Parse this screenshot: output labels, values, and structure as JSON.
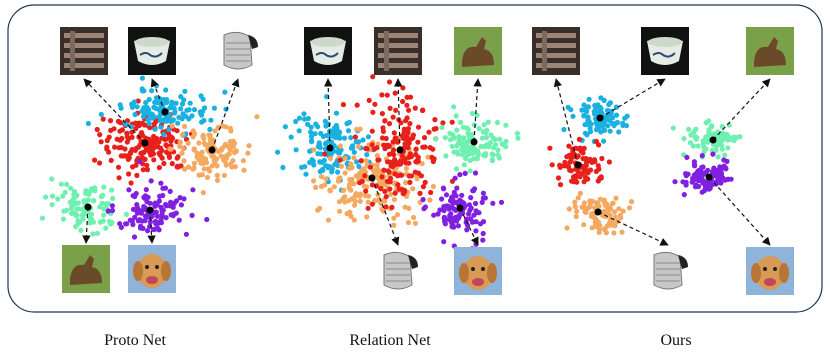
{
  "panels": [
    {
      "label": "Proto Net"
    },
    {
      "label": "Relation Net"
    },
    {
      "label": "Ours"
    }
  ]
}
